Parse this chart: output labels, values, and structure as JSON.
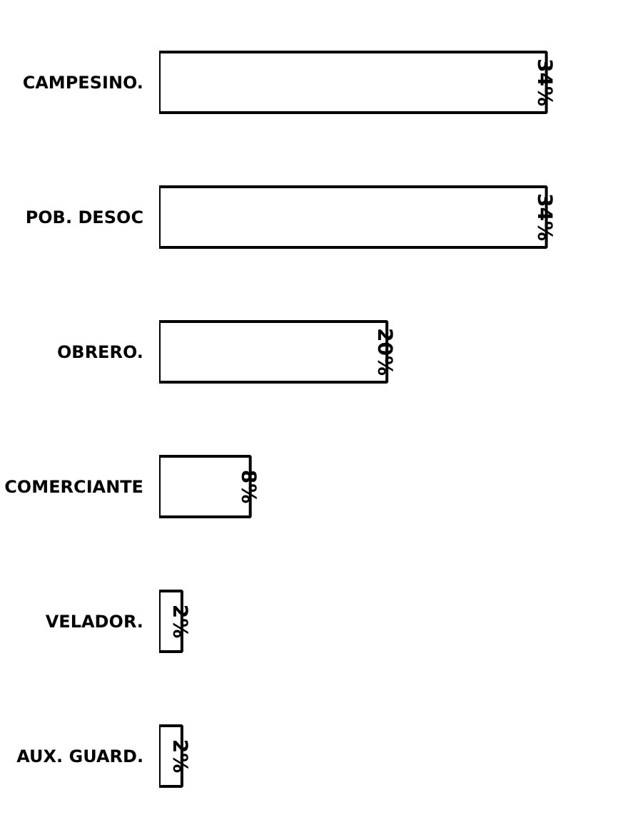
{
  "chart_data": {
    "type": "bar",
    "orientation": "horizontal",
    "categories": [
      "CAMPESINO.",
      "POB. DESOC",
      "OBRERO.",
      "COMERCIANTE",
      "VELADOR.",
      "AUX. GUARD."
    ],
    "values": [
      34,
      34,
      20,
      8,
      2,
      2
    ],
    "value_labels": [
      "34%",
      "34%",
      "20%",
      "8%",
      "2%",
      "2%"
    ],
    "color": "#ffffff"
  }
}
